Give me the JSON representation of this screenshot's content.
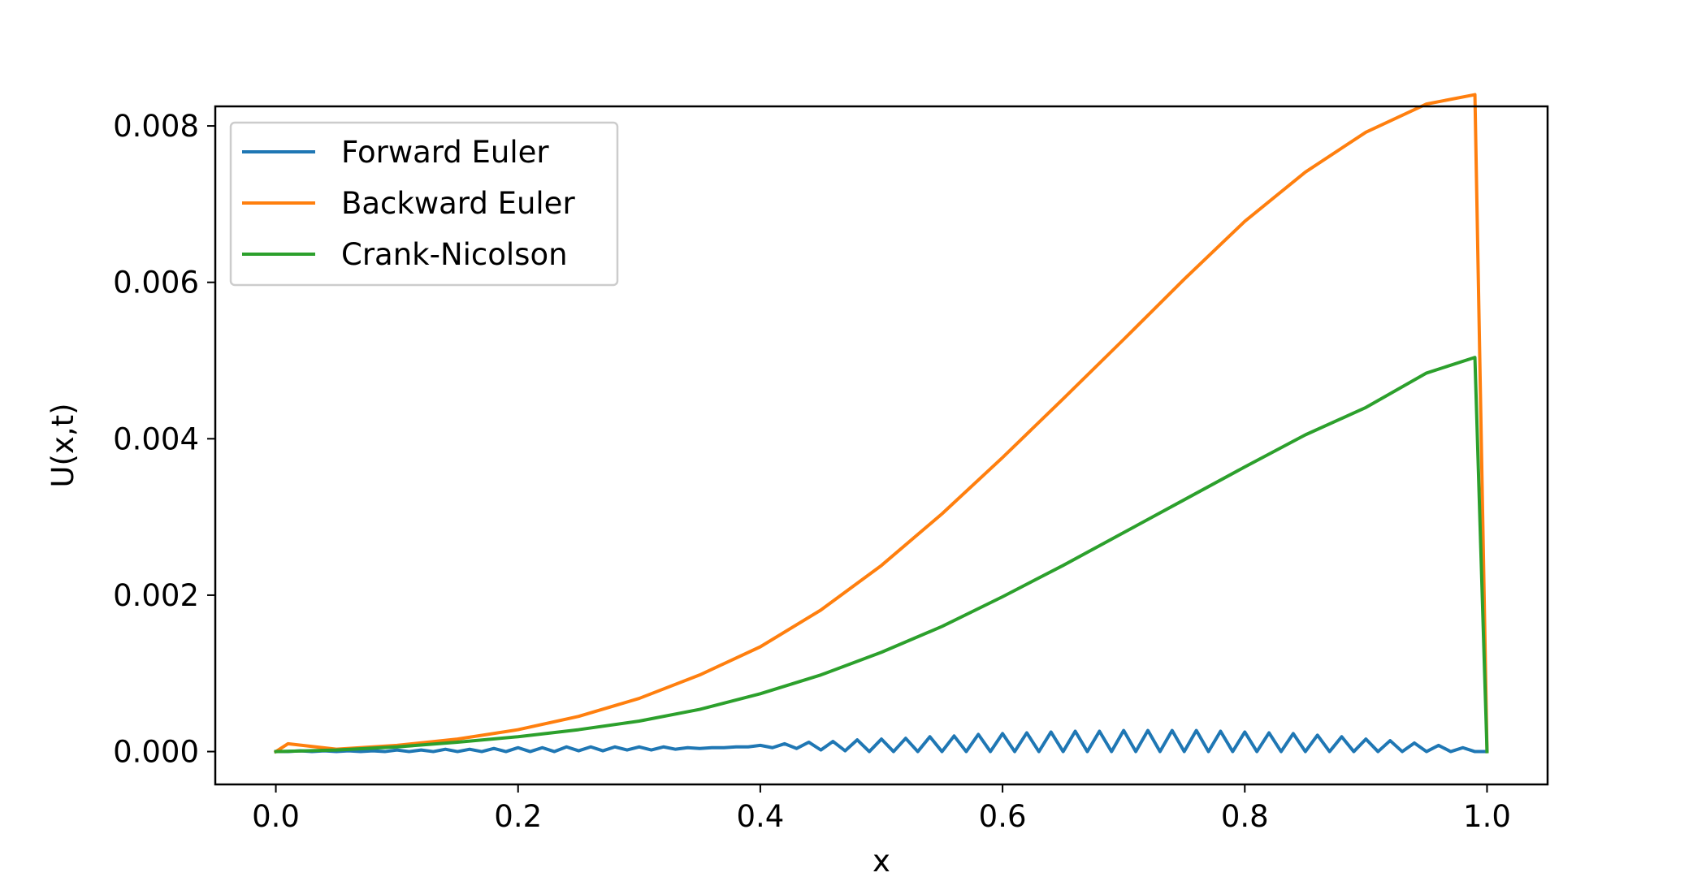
{
  "chart_data": {
    "type": "line",
    "title": "",
    "xlabel": "x",
    "ylabel": "U(x,t)",
    "xlim": [
      -0.05,
      1.05
    ],
    "ylim": [
      -0.00042,
      0.00825
    ],
    "xticks": [
      0.0,
      0.2,
      0.4,
      0.6,
      0.8,
      1.0
    ],
    "xtick_labels": [
      "0.0",
      "0.2",
      "0.4",
      "0.6",
      "0.8",
      "1.0"
    ],
    "yticks": [
      0.0,
      0.002,
      0.004,
      0.006,
      0.008
    ],
    "ytick_labels": [
      "0.000",
      "0.002",
      "0.004",
      "0.006",
      "0.008"
    ],
    "grid": false,
    "legend_position": "upper-left",
    "series": [
      {
        "name": "Forward Euler",
        "color": "#1f77b4",
        "x": [
          0.0,
          0.01,
          0.02,
          0.03,
          0.04,
          0.05,
          0.06,
          0.07,
          0.08,
          0.09,
          0.1,
          0.11,
          0.12,
          0.13,
          0.14,
          0.15,
          0.16,
          0.17,
          0.18,
          0.19,
          0.2,
          0.21,
          0.22,
          0.23,
          0.24,
          0.25,
          0.26,
          0.27,
          0.28,
          0.29,
          0.3,
          0.31,
          0.32,
          0.33,
          0.34,
          0.35,
          0.36,
          0.37,
          0.38,
          0.39,
          0.4,
          0.41,
          0.42,
          0.43,
          0.44,
          0.45,
          0.46,
          0.47,
          0.48,
          0.49,
          0.5,
          0.51,
          0.52,
          0.53,
          0.54,
          0.55,
          0.56,
          0.57,
          0.58,
          0.59,
          0.6,
          0.61,
          0.62,
          0.63,
          0.64,
          0.65,
          0.66,
          0.67,
          0.68,
          0.69,
          0.7,
          0.71,
          0.72,
          0.73,
          0.74,
          0.75,
          0.76,
          0.77,
          0.78,
          0.79,
          0.8,
          0.81,
          0.82,
          0.83,
          0.84,
          0.85,
          0.86,
          0.87,
          0.88,
          0.89,
          0.9,
          0.91,
          0.92,
          0.93,
          0.94,
          0.95,
          0.96,
          0.97,
          0.98,
          0.99,
          1.0
        ],
        "y": [
          0.0,
          0.0,
          1e-05,
          0.0,
          1e-05,
          0.0,
          1e-05,
          0.0,
          1e-05,
          0.0,
          2e-05,
          0.0,
          2e-05,
          0.0,
          3e-05,
          0.0,
          3e-05,
          0.0,
          4e-05,
          0.0,
          5e-05,
          0.0,
          5e-05,
          0.0,
          6e-05,
          1e-05,
          6e-05,
          1e-05,
          6e-05,
          2e-05,
          6e-05,
          2e-05,
          6e-05,
          3e-05,
          5e-05,
          4e-05,
          5e-05,
          5e-05,
          6e-05,
          6e-05,
          8e-05,
          5e-05,
          0.0001,
          4e-05,
          0.00012,
          2e-05,
          0.00013,
          1e-05,
          0.00015,
          0.0,
          0.00016,
          0.0,
          0.00017,
          0.0,
          0.00019,
          0.0,
          0.0002,
          0.0,
          0.00022,
          0.0,
          0.00023,
          0.0,
          0.00024,
          0.0,
          0.00025,
          0.0,
          0.00026,
          0.0,
          0.00026,
          0.0,
          0.00027,
          0.0,
          0.00027,
          0.0,
          0.00027,
          0.0,
          0.00027,
          0.0,
          0.00026,
          0.0,
          0.00025,
          0.0,
          0.00024,
          0.0,
          0.00023,
          0.0,
          0.00021,
          0.0,
          0.00019,
          0.0,
          0.00016,
          0.0,
          0.00014,
          0.0,
          0.00011,
          0.0,
          8e-05,
          0.0,
          5e-05,
          0.0,
          0.0
        ]
      },
      {
        "name": "Backward Euler",
        "color": "#ff7f0e",
        "x": [
          0.0,
          0.01,
          0.05,
          0.1,
          0.15,
          0.2,
          0.25,
          0.3,
          0.35,
          0.4,
          0.45,
          0.5,
          0.55,
          0.6,
          0.65,
          0.7,
          0.75,
          0.8,
          0.85,
          0.9,
          0.95,
          0.99,
          1.0
        ],
        "y": [
          0.0,
          0.0001,
          3e-05,
          8e-05,
          0.00016,
          0.00028,
          0.00045,
          0.00068,
          0.00098,
          0.00134,
          0.00181,
          0.00238,
          0.00304,
          0.00376,
          0.00451,
          0.00527,
          0.00604,
          0.00678,
          0.00741,
          0.00792,
          0.00828,
          0.0084,
          0.0
        ]
      },
      {
        "name": "Crank-Nicolson",
        "color": "#2ca02c",
        "x": [
          0.0,
          0.05,
          0.1,
          0.15,
          0.2,
          0.25,
          0.3,
          0.35,
          0.4,
          0.45,
          0.5,
          0.55,
          0.6,
          0.65,
          0.7,
          0.75,
          0.8,
          0.85,
          0.9,
          0.95,
          0.99,
          1.0
        ],
        "y": [
          0.0,
          2e-05,
          6e-05,
          0.00012,
          0.00019,
          0.00028,
          0.00039,
          0.00054,
          0.00074,
          0.00098,
          0.00127,
          0.0016,
          0.00198,
          0.00238,
          0.0028,
          0.00322,
          0.00364,
          0.00405,
          0.0044,
          0.00484,
          0.00504,
          0.0
        ]
      }
    ]
  }
}
